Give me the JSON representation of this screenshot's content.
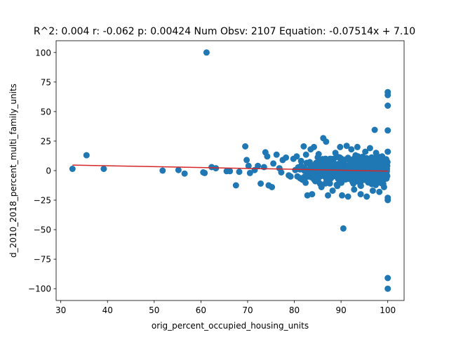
{
  "chart_data": {
    "type": "scatter",
    "title": "R^2: 0.004 r: -0.062 p: 0.00424 Num Obsv: 2107 Equation: -0.07514x + 7.10",
    "xlabel": "orig_percent_occupied_housing_units",
    "ylabel": "d_2010_2018_percent_multi_family_units",
    "xlim": [
      29,
      103.5
    ],
    "ylim": [
      -110,
      110
    ],
    "xticks": [
      30,
      40,
      50,
      60,
      70,
      80,
      90,
      100
    ],
    "yticks": [
      -100,
      -75,
      -50,
      -25,
      0,
      25,
      50,
      75,
      100
    ],
    "xtick_labels": [
      "30",
      "40",
      "50",
      "60",
      "70",
      "80",
      "90",
      "100"
    ],
    "ytick_labels": [
      "−100",
      "−75",
      "−50",
      "−25",
      "0",
      "25",
      "50",
      "75",
      "100"
    ],
    "grid": false,
    "series": [
      {
        "marker_color": "#1f77b4",
        "points": [
          [
            32.5,
            1.5
          ],
          [
            35.5,
            13
          ],
          [
            39.2,
            1.5
          ],
          [
            51.8,
            0
          ],
          [
            55.2,
            0.5
          ],
          [
            56.5,
            -2.5
          ],
          [
            60.5,
            -1.5
          ],
          [
            60.8,
            -2
          ],
          [
            61.2,
            100
          ],
          [
            62.3,
            3
          ],
          [
            63.2,
            2
          ],
          [
            65.5,
            -0.5
          ],
          [
            66.2,
            -0.5
          ],
          [
            67.5,
            -12.5
          ],
          [
            68.2,
            -1
          ],
          [
            69.5,
            20.5
          ],
          [
            69.8,
            9
          ],
          [
            70.2,
            4
          ],
          [
            70.5,
            -2
          ],
          [
            71.5,
            0.5
          ],
          [
            72.2,
            4
          ],
          [
            72.8,
            -11
          ],
          [
            73.5,
            3
          ],
          [
            73.8,
            15.5
          ],
          [
            74.2,
            12
          ],
          [
            74.5,
            -12.5
          ],
          [
            75.2,
            -14
          ],
          [
            75.5,
            6
          ],
          [
            76.2,
            13.5
          ],
          [
            76.8,
            2
          ],
          [
            77.5,
            9
          ],
          [
            78.2,
            11
          ],
          [
            78.8,
            -4
          ],
          [
            79.2,
            -5
          ],
          [
            79.8,
            10
          ],
          [
            80.5,
            12
          ],
          [
            81.2,
            1
          ],
          [
            81.5,
            -7
          ],
          [
            82,
            20.5
          ],
          [
            82.5,
            13.5
          ],
          [
            82.8,
            -21
          ],
          [
            83.5,
            18
          ],
          [
            83.8,
            -20
          ],
          [
            84.2,
            20
          ],
          [
            84.5,
            -9
          ],
          [
            85.2,
            14
          ],
          [
            85.8,
            -14
          ],
          [
            86.2,
            27.5
          ],
          [
            86.8,
            24.5
          ],
          [
            87.2,
            -21
          ],
          [
            87.8,
            10
          ],
          [
            88.2,
            -17
          ],
          [
            88.8,
            15
          ],
          [
            89.2,
            -13
          ],
          [
            89.8,
            20
          ],
          [
            90.2,
            -21
          ],
          [
            90.5,
            -49
          ],
          [
            91.2,
            21
          ],
          [
            91.5,
            -22
          ],
          [
            92.2,
            18
          ],
          [
            92.8,
            -16
          ],
          [
            93.5,
            20
          ],
          [
            94.2,
            -20
          ],
          [
            95.2,
            16
          ],
          [
            95.5,
            -22
          ],
          [
            96.2,
            19
          ],
          [
            96.8,
            -17
          ],
          [
            97.2,
            34.5
          ],
          [
            97.5,
            15
          ],
          [
            98.2,
            -18
          ],
          [
            98.8,
            12
          ],
          [
            99.2,
            -14
          ],
          [
            100,
            66.5
          ],
          [
            100,
            64
          ],
          [
            100,
            55
          ],
          [
            100,
            34
          ],
          [
            100,
            16
          ],
          [
            100,
            -23
          ],
          [
            100,
            -25
          ],
          [
            100,
            -91
          ],
          [
            100,
            -100
          ],
          [
            77.2,
            -1.5
          ],
          [
            80.2,
            0.5
          ],
          [
            83.2,
            -2.5
          ],
          [
            85.5,
            4
          ],
          [
            87.5,
            -5
          ],
          [
            88.5,
            6
          ],
          [
            90.8,
            -7
          ],
          [
            93.2,
            8
          ],
          [
            96.5,
            -8
          ],
          [
            99.5,
            9
          ]
        ]
      }
    ],
    "fit_line": {
      "color": "#d62728",
      "from": [
        32.5,
        4.66
      ],
      "to": [
        100,
        -0.41
      ]
    },
    "dense_region": {
      "x_range": [
        80,
        100
      ],
      "y_range": [
        -15,
        15
      ],
      "note": "approximate area of overlapping markers"
    }
  }
}
